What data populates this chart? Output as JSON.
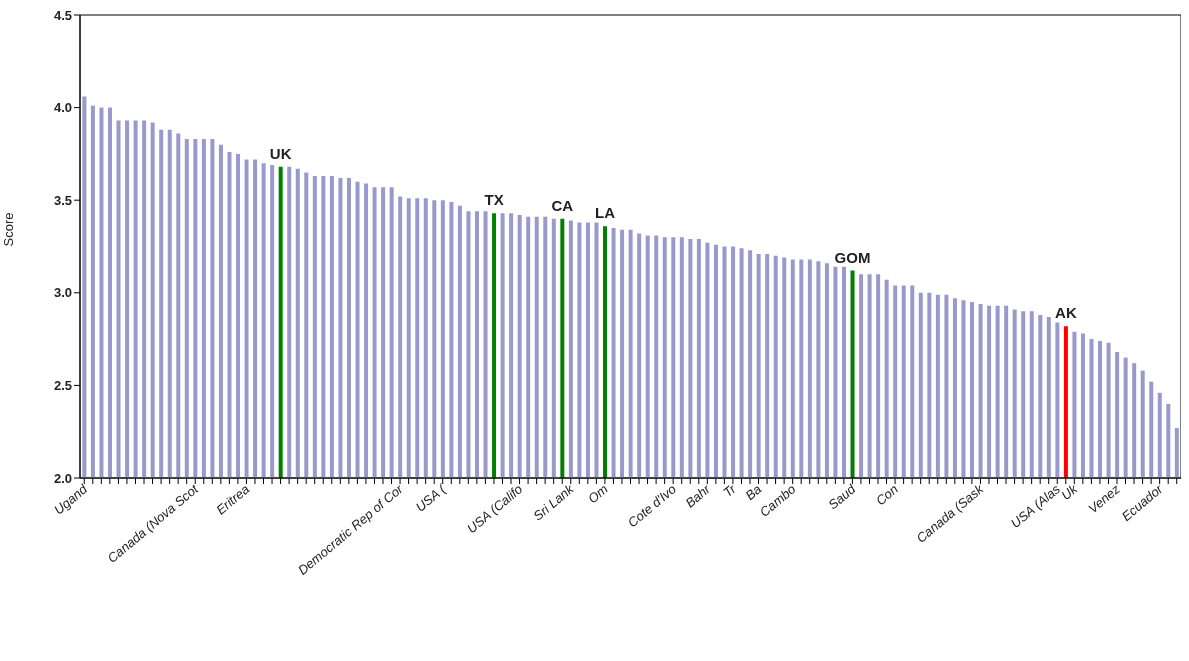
{
  "chart_data": {
    "type": "bar",
    "ylabel": "Score",
    "categories": [
      "Ugand",
      null,
      null,
      null,
      null,
      null,
      null,
      null,
      null,
      null,
      null,
      null,
      null,
      "Canada (Nova Scot",
      null,
      null,
      null,
      null,
      null,
      "Eritrea",
      null,
      null,
      null,
      null,
      null,
      null,
      null,
      null,
      null,
      null,
      null,
      null,
      null,
      null,
      null,
      null,
      null,
      "Democratic Rep of Cor",
      null,
      null,
      null,
      null,
      "USA (",
      null,
      null,
      null,
      null,
      null,
      null,
      null,
      null,
      "USA (Califo",
      null,
      null,
      null,
      null,
      null,
      "Sri Lank",
      null,
      null,
      null,
      "Om",
      null,
      null,
      null,
      null,
      null,
      null,
      null,
      "Cote d'Ivo",
      null,
      null,
      null,
      "Bahr",
      null,
      null,
      "Tr",
      null,
      null,
      "Ba",
      null,
      null,
      null,
      "Cambo",
      null,
      null,
      null,
      null,
      null,
      null,
      "Saud",
      null,
      null,
      null,
      null,
      "Con",
      null,
      null,
      null,
      null,
      null,
      null,
      null,
      null,
      null,
      "Canada (Sask",
      null,
      null,
      null,
      null,
      null,
      null,
      null,
      null,
      "USA (Alas",
      null,
      "Uk",
      null,
      null,
      null,
      null,
      "Venez",
      null,
      null,
      null,
      null,
      "Ecuador",
      null,
      null
    ],
    "values": [
      4.06,
      4.01,
      4.0,
      4.0,
      3.93,
      3.93,
      3.93,
      3.93,
      3.92,
      3.88,
      3.88,
      3.86,
      3.83,
      3.83,
      3.83,
      3.83,
      3.8,
      3.76,
      3.75,
      3.72,
      3.72,
      3.7,
      3.69,
      3.68,
      3.68,
      3.67,
      3.65,
      3.63,
      3.63,
      3.63,
      3.62,
      3.62,
      3.6,
      3.59,
      3.57,
      3.57,
      3.57,
      3.52,
      3.51,
      3.51,
      3.51,
      3.5,
      3.5,
      3.49,
      3.47,
      3.44,
      3.44,
      3.44,
      3.43,
      3.43,
      3.43,
      3.42,
      3.41,
      3.41,
      3.41,
      3.4,
      3.4,
      3.39,
      3.38,
      3.38,
      3.38,
      3.36,
      3.35,
      3.34,
      3.34,
      3.32,
      3.31,
      3.31,
      3.3,
      3.3,
      3.3,
      3.29,
      3.29,
      3.27,
      3.26,
      3.25,
      3.25,
      3.24,
      3.23,
      3.21,
      3.21,
      3.2,
      3.19,
      3.18,
      3.18,
      3.18,
      3.17,
      3.16,
      3.14,
      3.14,
      3.12,
      3.1,
      3.1,
      3.1,
      3.07,
      3.04,
      3.04,
      3.04,
      3.0,
      3.0,
      2.99,
      2.99,
      2.97,
      2.96,
      2.95,
      2.94,
      2.93,
      2.93,
      2.93,
      2.91,
      2.9,
      2.9,
      2.88,
      2.87,
      2.84,
      2.82,
      2.79,
      2.78,
      2.75,
      2.74,
      2.73,
      2.68,
      2.65,
      2.62,
      2.58,
      2.52,
      2.46,
      2.4,
      2.27
    ],
    "colors": [
      "#9999cc",
      "#9999cc",
      "#9999cc",
      "#9999cc",
      "#9999cc",
      "#9999cc",
      "#9999cc",
      "#9999cc",
      "#9999cc",
      "#9999cc",
      "#9999cc",
      "#9999cc",
      "#9999cc",
      "#9999cc",
      "#9999cc",
      "#9999cc",
      "#9999cc",
      "#9999cc",
      "#9999cc",
      "#9999cc",
      "#9999cc",
      "#9999cc",
      "#9999cc",
      "#008000",
      "#9999cc",
      "#9999cc",
      "#9999cc",
      "#9999cc",
      "#9999cc",
      "#9999cc",
      "#9999cc",
      "#9999cc",
      "#9999cc",
      "#9999cc",
      "#9999cc",
      "#9999cc",
      "#9999cc",
      "#9999cc",
      "#9999cc",
      "#9999cc",
      "#9999cc",
      "#9999cc",
      "#9999cc",
      "#9999cc",
      "#9999cc",
      "#9999cc",
      "#9999cc",
      "#9999cc",
      "#008000",
      "#9999cc",
      "#9999cc",
      "#9999cc",
      "#9999cc",
      "#9999cc",
      "#9999cc",
      "#9999cc",
      "#008000",
      "#9999cc",
      "#9999cc",
      "#9999cc",
      "#9999cc",
      "#008000",
      "#9999cc",
      "#9999cc",
      "#9999cc",
      "#9999cc",
      "#9999cc",
      "#9999cc",
      "#9999cc",
      "#9999cc",
      "#9999cc",
      "#9999cc",
      "#9999cc",
      "#9999cc",
      "#9999cc",
      "#9999cc",
      "#9999cc",
      "#9999cc",
      "#9999cc",
      "#9999cc",
      "#9999cc",
      "#9999cc",
      "#9999cc",
      "#9999cc",
      "#9999cc",
      "#9999cc",
      "#9999cc",
      "#9999cc",
      "#9999cc",
      "#9999cc",
      "#008000",
      "#9999cc",
      "#9999cc",
      "#9999cc",
      "#9999cc",
      "#9999cc",
      "#9999cc",
      "#9999cc",
      "#9999cc",
      "#9999cc",
      "#9999cc",
      "#9999cc",
      "#9999cc",
      "#9999cc",
      "#9999cc",
      "#9999cc",
      "#9999cc",
      "#9999cc",
      "#9999cc",
      "#9999cc",
      "#9999cc",
      "#9999cc",
      "#9999cc",
      "#9999cc",
      "#9999cc",
      "#ff0000",
      "#9999cc",
      "#9999cc",
      "#9999cc",
      "#9999cc",
      "#9999cc",
      "#9999cc",
      "#9999cc",
      "#9999cc",
      "#9999cc",
      "#9999cc",
      "#9999cc",
      "#9999cc",
      "#9999cc"
    ],
    "value_labels": [
      null,
      null,
      null,
      null,
      null,
      null,
      null,
      null,
      null,
      null,
      null,
      null,
      null,
      null,
      null,
      null,
      null,
      null,
      null,
      null,
      null,
      null,
      null,
      "UK",
      null,
      null,
      null,
      null,
      null,
      null,
      null,
      null,
      null,
      null,
      null,
      null,
      null,
      null,
      null,
      null,
      null,
      null,
      null,
      null,
      null,
      null,
      null,
      null,
      "TX",
      null,
      null,
      null,
      null,
      null,
      null,
      null,
      "CA",
      null,
      null,
      null,
      null,
      "LA",
      null,
      null,
      null,
      null,
      null,
      null,
      null,
      null,
      null,
      null,
      null,
      null,
      null,
      null,
      null,
      null,
      null,
      null,
      null,
      null,
      null,
      null,
      null,
      null,
      null,
      null,
      null,
      null,
      "GOM",
      null,
      null,
      null,
      null,
      null,
      null,
      null,
      null,
      null,
      null,
      null,
      null,
      null,
      null,
      null,
      null,
      null,
      null,
      null,
      null,
      null,
      null,
      null,
      null,
      "AK",
      null,
      null,
      null,
      null,
      null,
      null,
      null,
      null,
      null,
      null,
      null,
      null,
      null
    ],
    "ylim": [
      2,
      4.5
    ],
    "yticks": [
      {
        "value": 2,
        "label": "2.0"
      },
      {
        "value": 2.5,
        "label": "2.5"
      },
      {
        "value": 3,
        "label": "3.0"
      },
      {
        "value": 3.5,
        "label": "3.5"
      },
      {
        "value": 4,
        "label": "4.0"
      },
      {
        "value": 4.5,
        "label": "4.5"
      }
    ]
  }
}
